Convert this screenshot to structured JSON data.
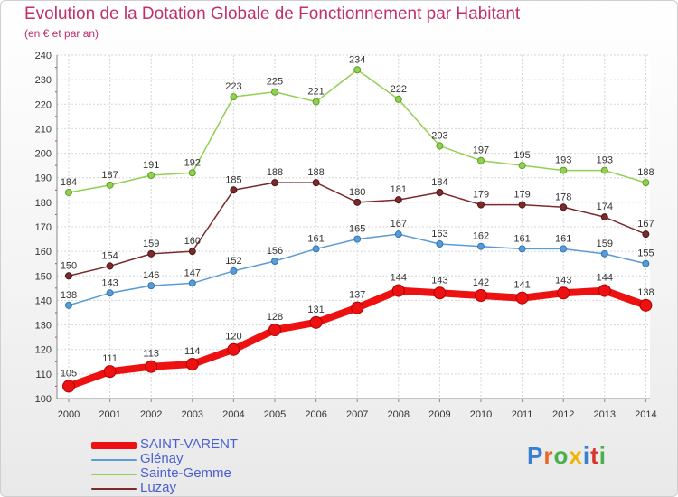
{
  "title": "Evolution de la Dotation Globale de Fonctionnement par Habitant",
  "subtitle": "(en € et par an)",
  "logo": {
    "text": "Proxiti",
    "colors": [
      "#3a7fcf",
      "#e8682a",
      "#49b04c",
      "#f0b500",
      "#3a7fcf",
      "#d9342b",
      "#49b04c"
    ]
  },
  "chart_data": {
    "type": "line",
    "title": "Evolution de la Dotation Globale de Fonctionnement par Habitant",
    "subtitle": "(en € et par an)",
    "x": [
      "2000",
      "2001",
      "2002",
      "2003",
      "2004",
      "2005",
      "2006",
      "2007",
      "2008",
      "2009",
      "2010",
      "2011",
      "2012",
      "2013",
      "2014"
    ],
    "ylim": [
      100,
      240
    ],
    "yticks": [
      100,
      110,
      120,
      130,
      140,
      150,
      160,
      170,
      180,
      190,
      200,
      210,
      220,
      230,
      240
    ],
    "grid": true,
    "legend_position": "bottom-left",
    "series": [
      {
        "name": "SAINT-VARENT",
        "color": "#ee1111",
        "values": [
          105,
          111,
          113,
          114,
          120,
          128,
          131,
          137,
          144,
          143,
          142,
          141,
          143,
          144,
          138
        ]
      },
      {
        "name": "Glénay",
        "color": "#5b9bd5",
        "values": [
          138,
          143,
          146,
          147,
          152,
          156,
          161,
          165,
          167,
          163,
          162,
          161,
          161,
          159,
          155
        ]
      },
      {
        "name": "Sainte-Gemme",
        "color": "#92d050",
        "values": [
          184,
          187,
          191,
          192,
          223,
          225,
          221,
          234,
          222,
          203,
          197,
          195,
          193,
          193,
          188
        ]
      },
      {
        "name": "Luzay",
        "color": "#7b2b2b",
        "values": [
          150,
          154,
          159,
          160,
          185,
          188,
          188,
          180,
          181,
          184,
          179,
          179,
          178,
          174,
          167
        ]
      }
    ]
  }
}
